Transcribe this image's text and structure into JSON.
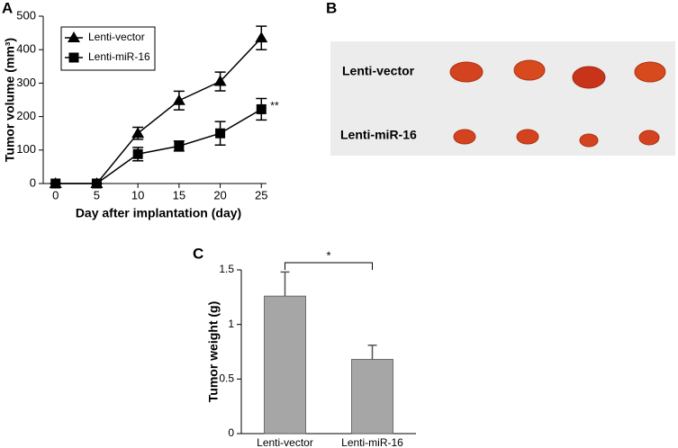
{
  "chart_data": [
    {
      "type": "line",
      "panel": "A",
      "y_label": "Tumor volume (mm³)",
      "x_label": "Day after implantation (day)",
      "x": [
        0,
        5,
        10,
        15,
        20,
        25
      ],
      "xlim": [
        -1.5,
        26.5
      ],
      "xticks": [
        0,
        5,
        10,
        15,
        20,
        25
      ],
      "ylim": [
        0,
        500
      ],
      "yticks": [
        0,
        100,
        200,
        300,
        400,
        500
      ],
      "legend": "top-left",
      "series": [
        {
          "name": "Lenti-vector",
          "marker": "triangle",
          "color": "#000000",
          "values": [
            0,
            0,
            150,
            248,
            305,
            435
          ],
          "errors": [
            0,
            0,
            18,
            28,
            28,
            35
          ]
        },
        {
          "name": "Lenti-miR-16",
          "marker": "square",
          "color": "#000000",
          "values": [
            0,
            0,
            88,
            112,
            150,
            222
          ],
          "errors": [
            0,
            0,
            20,
            15,
            35,
            32
          ]
        }
      ],
      "annotation": "**"
    },
    {
      "type": "image",
      "panel": "B",
      "rows": [
        "Lenti-vector",
        "Lenti-miR-16"
      ]
    },
    {
      "type": "bar",
      "panel": "C",
      "y_label": "Tumor weight (g)",
      "categories": [
        "Lenti-vector",
        "Lenti-miR-16"
      ],
      "values": [
        1.26,
        0.68
      ],
      "errors": [
        0.22,
        0.13
      ],
      "color": "#a6a6a6",
      "ylim": [
        0,
        1.5
      ],
      "yticks": [
        0,
        0.5,
        1,
        1.5
      ],
      "annotation": "*"
    }
  ]
}
